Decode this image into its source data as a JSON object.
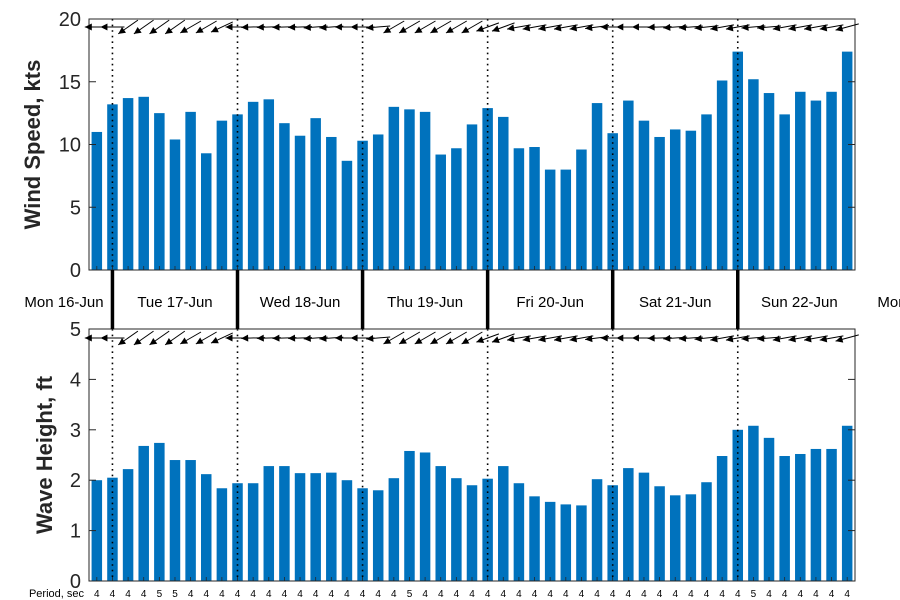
{
  "chart_data": [
    {
      "type": "bar",
      "ylabel": "Wind Speed, kts",
      "ylim": [
        0,
        20
      ],
      "yticks": [
        0,
        5,
        10,
        15,
        20
      ],
      "bar_color": "#0072BD",
      "values": [
        11.0,
        13.2,
        13.7,
        13.8,
        12.5,
        10.4,
        12.6,
        9.3,
        11.9,
        12.4,
        13.4,
        13.6,
        11.7,
        10.7,
        12.1,
        10.6,
        8.7,
        10.3,
        10.8,
        13.0,
        12.8,
        12.6,
        9.2,
        9.7,
        11.6,
        12.9,
        12.2,
        9.7,
        9.8,
        8.0,
        8.0,
        9.6,
        13.3,
        10.9,
        13.5,
        11.9,
        10.6,
        11.2,
        11.1,
        12.4,
        15.1,
        17.4,
        15.2,
        14.1,
        12.4,
        14.2,
        13.5,
        14.2,
        17.4
      ],
      "direction_arrows": true,
      "grid": false
    },
    {
      "type": "bar",
      "ylabel": "Wave Height, ft",
      "ylim": [
        0,
        5
      ],
      "yticks": [
        0,
        1,
        2,
        3,
        4,
        5
      ],
      "bar_color": "#0072BD",
      "values": [
        2.0,
        2.05,
        2.22,
        2.68,
        2.74,
        2.4,
        2.4,
        2.12,
        1.84,
        1.94,
        1.94,
        2.28,
        2.28,
        2.14,
        2.14,
        2.15,
        2.0,
        1.84,
        1.8,
        2.04,
        2.58,
        2.55,
        2.28,
        2.04,
        1.9,
        2.03,
        2.28,
        1.94,
        1.68,
        1.57,
        1.52,
        1.5,
        2.02,
        1.9,
        2.24,
        2.15,
        1.88,
        1.7,
        1.72,
        1.96,
        2.48,
        3.0,
        3.08,
        2.84,
        2.48,
        2.52,
        2.62,
        2.62,
        3.08
      ],
      "direction_arrows": true,
      "grid": false
    }
  ],
  "day_labels": [
    "Mon 16-Jun",
    "Tue 17-Jun",
    "Wed 18-Jun",
    "Thu 19-Jun",
    "Fri 20-Jun",
    "Sat 21-Jun",
    "Sun 22-Jun",
    "Mon"
  ],
  "period_label": "Period, sec",
  "periods": [
    "4",
    "4",
    "4",
    "4",
    "5",
    "5",
    "4",
    "4",
    "4",
    "4",
    "4",
    "4",
    "4",
    "4",
    "4",
    "4",
    "4",
    "4",
    "4",
    "4",
    "5",
    "4",
    "4",
    "4",
    "4",
    "4",
    "4",
    "4",
    "4",
    "4",
    "4",
    "4",
    "4",
    "4",
    "4",
    "4",
    "4",
    "4",
    "4",
    "4",
    "4",
    "4",
    "5",
    "4",
    "4",
    "4",
    "4",
    "4",
    "4"
  ],
  "wind_arrow_angles": [
    180,
    180,
    215,
    215,
    215,
    215,
    210,
    210,
    205,
    180,
    182,
    182,
    182,
    182,
    184,
    184,
    180,
    180,
    185,
    210,
    210,
    210,
    210,
    210,
    210,
    200,
    200,
    190,
    190,
    190,
    190,
    190,
    187,
    180,
    180,
    180,
    182,
    184,
    184,
    186,
    190,
    190,
    185,
    185,
    190,
    190,
    190,
    190,
    195
  ],
  "wave_arrow_angles": [
    180,
    180,
    215,
    215,
    215,
    215,
    210,
    210,
    205,
    180,
    182,
    182,
    182,
    182,
    184,
    184,
    180,
    180,
    185,
    210,
    210,
    210,
    210,
    210,
    210,
    200,
    200,
    190,
    190,
    190,
    190,
    190,
    187,
    180,
    180,
    180,
    182,
    184,
    184,
    186,
    190,
    190,
    185,
    185,
    190,
    190,
    190,
    190,
    195
  ]
}
